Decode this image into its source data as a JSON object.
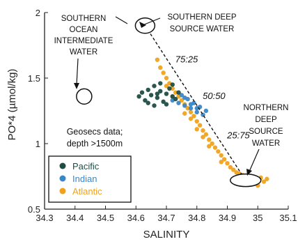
{
  "chart_data": {
    "type": "scatter",
    "xlabel": "SALINITY",
    "ylabel": "PO*4 (µmol/kg)",
    "xlim": [
      34.3,
      35.1
    ],
    "ylim": [
      0.5,
      2.0
    ],
    "x_ticks": [
      "34.3",
      "34.4",
      "34.5",
      "34.6",
      "34.7",
      "34.8",
      "34.9",
      "35",
      "35.1"
    ],
    "y_ticks": [
      "0.5",
      "1",
      "1.5",
      "2"
    ],
    "legend": {
      "placement": "bottom-left",
      "entries": [
        {
          "name": "Pacific",
          "color": "#1f4d45"
        },
        {
          "name": "Indian",
          "color": "#3a87c8"
        },
        {
          "name": "Atlantic",
          "color": "#f0a21c"
        }
      ]
    },
    "data_note": "Geosecs data; depth >1500m",
    "series": [
      {
        "name": "Pacific",
        "color": "#1f4d45",
        "points": [
          [
            34.61,
            1.36
          ],
          [
            34.62,
            1.39
          ],
          [
            34.63,
            1.33
          ],
          [
            34.64,
            1.41
          ],
          [
            34.65,
            1.37
          ],
          [
            34.66,
            1.44
          ],
          [
            34.67,
            1.35
          ],
          [
            34.68,
            1.4
          ],
          [
            34.69,
            1.32
          ],
          [
            34.7,
            1.38
          ],
          [
            34.71,
            1.42
          ],
          [
            34.72,
            1.36
          ],
          [
            34.73,
            1.34
          ],
          [
            34.74,
            1.39
          ],
          [
            34.64,
            1.31
          ],
          [
            34.66,
            1.29
          ],
          [
            34.68,
            1.46
          ],
          [
            34.7,
            1.3
          ],
          [
            34.72,
            1.45
          ],
          [
            34.67,
            1.38
          ]
        ]
      },
      {
        "name": "Indian",
        "color": "#3a87c8",
        "points": [
          [
            34.72,
            1.33
          ],
          [
            34.74,
            1.31
          ],
          [
            34.75,
            1.37
          ],
          [
            34.76,
            1.29
          ],
          [
            34.77,
            1.34
          ],
          [
            34.78,
            1.27
          ],
          [
            34.79,
            1.31
          ],
          [
            34.8,
            1.24
          ],
          [
            34.81,
            1.28
          ],
          [
            34.82,
            1.22
          ],
          [
            34.83,
            1.25
          ],
          [
            34.76,
            1.35
          ],
          [
            34.78,
            1.3
          ],
          [
            34.8,
            1.27
          ]
        ]
      },
      {
        "name": "Atlantic",
        "color": "#f0a21c",
        "points": [
          [
            34.67,
            1.64
          ],
          [
            34.68,
            1.58
          ],
          [
            34.69,
            1.54
          ],
          [
            34.7,
            1.5
          ],
          [
            34.71,
            1.46
          ],
          [
            34.72,
            1.42
          ],
          [
            34.73,
            1.39
          ],
          [
            34.74,
            1.36
          ],
          [
            34.75,
            1.33
          ],
          [
            34.76,
            1.3
          ],
          [
            34.77,
            1.27
          ],
          [
            34.78,
            1.24
          ],
          [
            34.79,
            1.21
          ],
          [
            34.8,
            1.17
          ],
          [
            34.81,
            1.14
          ],
          [
            34.82,
            1.1
          ],
          [
            34.83,
            1.07
          ],
          [
            34.84,
            1.03
          ],
          [
            34.85,
            1.0
          ],
          [
            34.86,
            0.97
          ],
          [
            34.87,
            0.94
          ],
          [
            34.88,
            0.91
          ],
          [
            34.89,
            0.88
          ],
          [
            34.9,
            0.85
          ],
          [
            34.91,
            0.82
          ],
          [
            34.92,
            0.8
          ],
          [
            34.93,
            0.78
          ],
          [
            34.94,
            0.77
          ],
          [
            34.95,
            0.76
          ],
          [
            34.96,
            0.75
          ],
          [
            34.97,
            0.74
          ],
          [
            34.98,
            0.73
          ],
          [
            34.99,
            0.74
          ],
          [
            35.0,
            0.72
          ],
          [
            35.01,
            0.74
          ],
          [
            35.02,
            0.71
          ],
          [
            35.03,
            0.73
          ],
          [
            34.94,
            0.7
          ],
          [
            34.97,
            0.69
          ],
          [
            35.0,
            0.68
          ],
          [
            34.92,
            0.72
          ],
          [
            34.96,
            0.71
          ],
          [
            34.88,
            0.86
          ],
          [
            34.84,
            0.98
          ],
          [
            34.8,
            1.11
          ],
          [
            34.76,
            1.23
          ],
          [
            34.72,
            1.36
          ],
          [
            34.7,
            1.44
          ],
          [
            34.78,
            1.19
          ],
          [
            34.82,
            1.05
          ]
        ]
      }
    ],
    "mixing_line": {
      "x": [
        34.63,
        34.96
      ],
      "y": [
        1.9,
        0.72
      ],
      "style": "dashed"
    },
    "mixing_ratios": [
      {
        "label": "75:25",
        "x": 34.72,
        "y": 1.62
      },
      {
        "label": "50:50",
        "x": 34.81,
        "y": 1.34
      },
      {
        "label": "25:75",
        "x": 34.89,
        "y": 1.04
      }
    ],
    "source_ellipses": [
      {
        "label": "SOUTHERN DEEP SOURCE WATER",
        "x": 34.63,
        "y": 1.9
      },
      {
        "label": "SOUTHERN OCEAN INTERMEDIATE WATER",
        "x": 34.43,
        "y": 1.36
      },
      {
        "label": "NORTHERN DEEP SOURCE WATER",
        "x": 34.96,
        "y": 0.72
      }
    ],
    "annotations": {
      "southern_deep": [
        "SOUTHERN DEEP",
        "SOURCE WATER"
      ],
      "southern_intermediate": [
        "SOUTHERN",
        "OCEAN",
        "INTERMEDIATE",
        "WATER"
      ],
      "northern_deep": [
        "NORTHERN",
        "DEEP",
        "SOURCE",
        "WATER"
      ],
      "geosecs": [
        "Geosecs data;",
        "depth >1500m"
      ]
    }
  }
}
